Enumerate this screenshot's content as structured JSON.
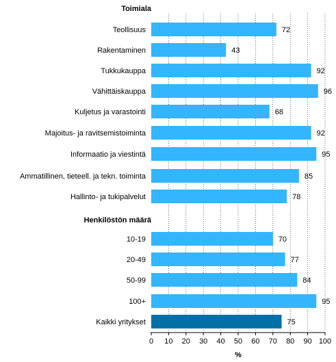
{
  "chart_data": {
    "type": "bar",
    "orientation": "horizontal",
    "group_titles": [
      "Toimiala",
      "Henkilöstön määrä"
    ],
    "categories": [
      "Teollisuus",
      "Rakentaminen",
      "Tukkukauppa",
      "Vähittäiskauppa",
      "Kuljetus ja varastointi",
      "Majoitus- ja ravitsemistoiminta",
      "Informaatio ja viestintä",
      "Ammatillinen, tieteell. ja tekn. toiminta",
      "Hallinto- ja tukipalvelut",
      "10-19",
      "20-49",
      "50-99",
      "100+",
      "Kaikki yritykset"
    ],
    "category_group": [
      0,
      0,
      0,
      0,
      0,
      0,
      0,
      0,
      0,
      1,
      1,
      1,
      1,
      1
    ],
    "values": [
      72,
      43,
      92,
      96,
      68,
      92,
      95,
      85,
      78,
      70,
      77,
      84,
      95,
      75
    ],
    "value_labels": [
      "72",
      "43",
      "92",
      "96",
      "68",
      "92",
      "95",
      "85",
      "78",
      "70",
      "77",
      "84",
      "95",
      "75"
    ],
    "highlight_index": 13,
    "xlim": [
      0,
      100
    ],
    "xticks": [
      "0",
      "10",
      "20",
      "30",
      "40",
      "50",
      "60",
      "70",
      "80",
      "90",
      "100"
    ],
    "xlabel": "%",
    "grid": true,
    "colors": {
      "bar": "#33b5ff",
      "highlight": "#0070a8"
    }
  }
}
